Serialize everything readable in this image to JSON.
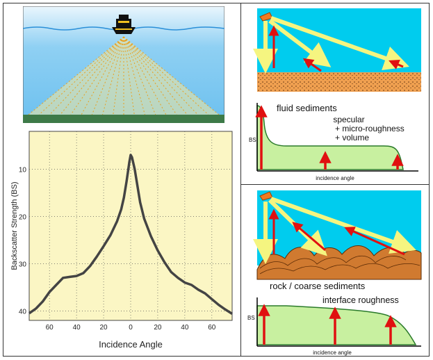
{
  "chart_data": {
    "type": "line",
    "xlabel": "Incidence Angle",
    "ylabel": "Backscatter Strength (BS)",
    "x_ticks": [
      60,
      40,
      20,
      0,
      20,
      40,
      60
    ],
    "y_ticks": [
      10,
      20,
      30,
      40
    ],
    "xlim": [
      -75,
      75
    ],
    "ylim": [
      2,
      42
    ],
    "y_inverted": true,
    "grid": true,
    "series": [
      {
        "x": [
          -75,
          -70,
          -65,
          -60,
          -55,
          -50,
          -45,
          -40,
          -35,
          -30,
          -25,
          -20,
          -15,
          -10,
          -7,
          -5,
          -3,
          -1,
          0,
          1,
          3,
          5,
          7,
          10,
          15,
          20,
          25,
          30,
          35,
          40,
          45,
          50,
          55,
          60,
          65,
          70,
          75
        ],
        "values": [
          40.5,
          39.5,
          38,
          36,
          34.5,
          33,
          32.8,
          32.6,
          32,
          30.5,
          28.5,
          26.3,
          24,
          21,
          18.5,
          16,
          12.5,
          8.5,
          7,
          7.5,
          10,
          13.5,
          17,
          20.5,
          24.2,
          27.2,
          29.7,
          31.8,
          33,
          34,
          34.5,
          35.5,
          36.3,
          37.5,
          38.7,
          39.7,
          40.6
        ]
      }
    ]
  },
  "panel1": {
    "labels": {
      "title": "fluid sediments",
      "mechanisms": [
        "specular",
        "+ micro-roughness",
        "+ volume"
      ],
      "y_axis": "BS",
      "x_axis": "incidence angle"
    }
  },
  "panel2": {
    "labels": {
      "title": "rock / coarse sediments",
      "mechanism": "interface roughness",
      "y_axis": "BS",
      "x_axis": "incidence angle"
    }
  },
  "colors": {
    "sky": "#00ccee",
    "beam": "#f5f580",
    "arrow": "#e01010",
    "sediment": "#f0a050",
    "curve_fill": "#c8f0a0",
    "plot_bg": "#fbf6c4",
    "sea": "#6cc0ef",
    "seabed": "#3d7a48",
    "curve": "#444444"
  }
}
